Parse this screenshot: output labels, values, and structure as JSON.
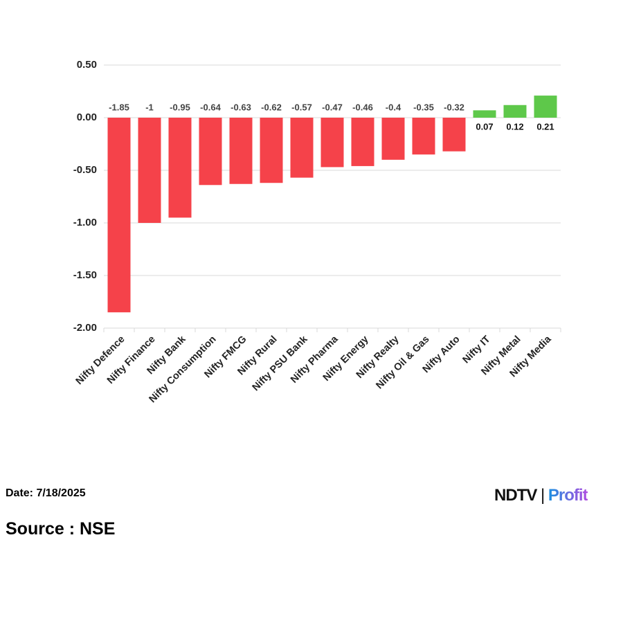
{
  "chart_data": {
    "type": "bar",
    "categories": [
      "Nifty Defence",
      "Nifty Finance",
      "Nifty Bank",
      "Nifty Consumption",
      "Nifty FMCG",
      "Nifty Rural",
      "Nifty PSU Bank",
      "Nifty Pharma",
      "Nifty Energy",
      "Nifty Realty",
      "Nifty Oil & Gas",
      "Nifty Auto",
      "Nifty IT",
      "Nifty Metal",
      "Nifty Media"
    ],
    "values": [
      -1.85,
      -1,
      -0.95,
      -0.64,
      -0.63,
      -0.62,
      -0.57,
      -0.47,
      -0.46,
      -0.4,
      -0.35,
      -0.32,
      0.07,
      0.12,
      0.21
    ],
    "negative_color": "#f5424a",
    "positive_color": "#5ec84a",
    "ylim": [
      -2,
      0.5
    ],
    "yticks": [
      {
        "value": 0.5,
        "label": "0.50"
      },
      {
        "value": 0,
        "label": "0.00"
      },
      {
        "value": -0.5,
        "label": "-0.50"
      },
      {
        "value": -1,
        "label": "-1.00"
      },
      {
        "value": -1.5,
        "label": "-1.50"
      },
      {
        "value": -2,
        "label": "-2.00"
      }
    ],
    "grid": true
  },
  "footer": {
    "date": "Date: 7/18/2025",
    "source": "Source : NSE",
    "logo_left": "NDTV",
    "logo_right": "Profit"
  }
}
